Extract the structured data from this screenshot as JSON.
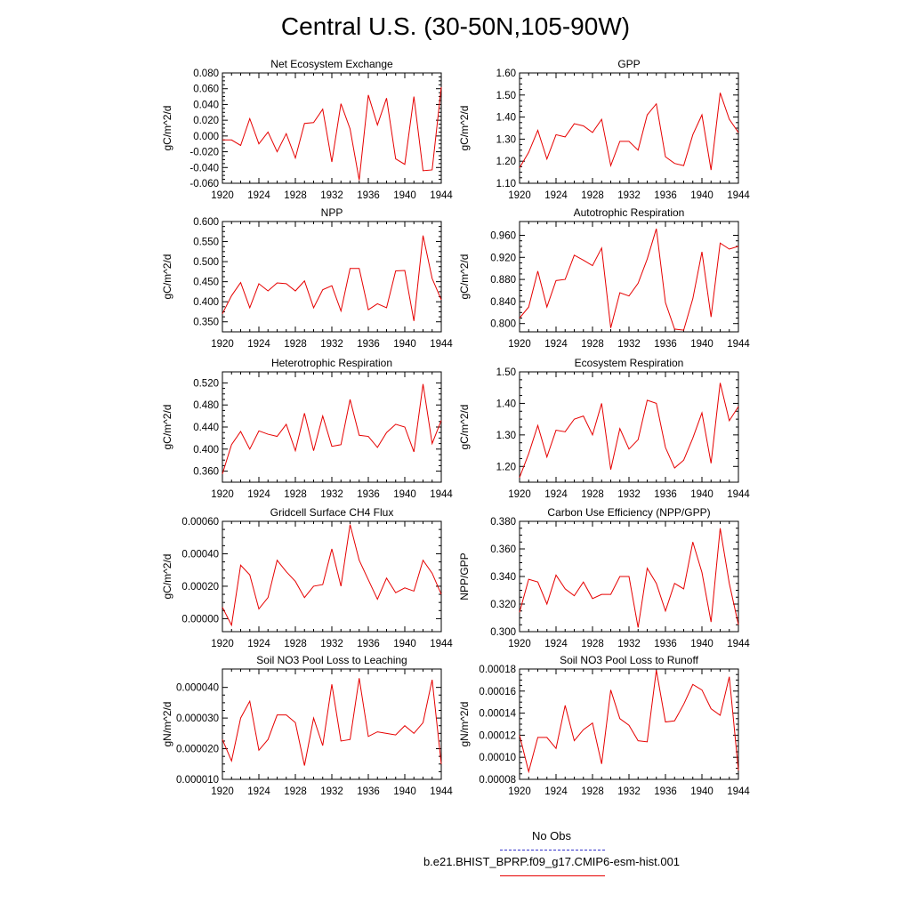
{
  "title": "Central U.S. (30-50N,105-90W)",
  "legend": {
    "obs_label": "No Obs",
    "obs_color": "#3333cc",
    "model_label": "b.e21.BHIST_BPRP.f09_g17.CMIP6-esm-hist.001",
    "model_color": "#e60000"
  },
  "chart_data": [
    {
      "type": "line",
      "title": "Net Ecosystem Exchange",
      "ylabel": "gC/m^2/d",
      "xlim": [
        1920,
        1944
      ],
      "ylim": [
        -0.06,
        0.08
      ],
      "yticks": [
        "-0.060",
        "-0.040",
        "-0.020",
        "0.000",
        "0.020",
        "0.040",
        "0.060",
        "0.080"
      ],
      "ytick_values": [
        -0.06,
        -0.04,
        -0.02,
        0.0,
        0.02,
        0.04,
        0.06,
        0.08
      ],
      "xticks": [
        1920,
        1924,
        1928,
        1932,
        1936,
        1940,
        1944
      ],
      "x": [
        1920,
        1921,
        1922,
        1923,
        1924,
        1925,
        1926,
        1927,
        1928,
        1929,
        1930,
        1931,
        1932,
        1933,
        1934,
        1935,
        1936,
        1937,
        1938,
        1939,
        1940,
        1941,
        1942,
        1943,
        1944
      ],
      "values": [
        -0.005,
        -0.005,
        -0.012,
        0.022,
        -0.01,
        0.005,
        -0.02,
        0.003,
        -0.028,
        0.016,
        0.017,
        0.034,
        -0.033,
        0.041,
        0.009,
        -0.056,
        0.052,
        0.014,
        0.048,
        -0.029,
        -0.036,
        0.05,
        -0.044,
        -0.043,
        0.062
      ]
    },
    {
      "type": "line",
      "title": "GPP",
      "ylabel": "gC/m^2/d",
      "xlim": [
        1920,
        1944
      ],
      "ylim": [
        1.1,
        1.6
      ],
      "yticks": [
        "1.10",
        "1.20",
        "1.30",
        "1.40",
        "1.50",
        "1.60"
      ],
      "ytick_values": [
        1.1,
        1.2,
        1.3,
        1.4,
        1.5,
        1.6
      ],
      "xticks": [
        1920,
        1924,
        1928,
        1932,
        1936,
        1940,
        1944
      ],
      "x": [
        1920,
        1921,
        1922,
        1923,
        1924,
        1925,
        1926,
        1927,
        1928,
        1929,
        1930,
        1931,
        1932,
        1933,
        1934,
        1935,
        1936,
        1937,
        1938,
        1939,
        1940,
        1941,
        1942,
        1943,
        1944
      ],
      "values": [
        1.17,
        1.24,
        1.34,
        1.21,
        1.32,
        1.31,
        1.37,
        1.36,
        1.33,
        1.39,
        1.18,
        1.29,
        1.29,
        1.25,
        1.41,
        1.46,
        1.22,
        1.19,
        1.18,
        1.32,
        1.41,
        1.16,
        1.51,
        1.39,
        1.33
      ]
    },
    {
      "type": "line",
      "title": "NPP",
      "ylabel": "gC/m^2/d",
      "xlim": [
        1920,
        1944
      ],
      "ylim": [
        0.325,
        0.6
      ],
      "yticks": [
        "0.350",
        "0.400",
        "0.450",
        "0.500",
        "0.550",
        "0.600"
      ],
      "ytick_values": [
        0.35,
        0.4,
        0.45,
        0.5,
        0.55,
        0.6
      ],
      "xticks": [
        1920,
        1924,
        1928,
        1932,
        1936,
        1940,
        1944
      ],
      "x": [
        1920,
        1921,
        1922,
        1923,
        1924,
        1925,
        1926,
        1927,
        1928,
        1929,
        1930,
        1931,
        1932,
        1933,
        1934,
        1935,
        1936,
        1937,
        1938,
        1939,
        1940,
        1941,
        1942,
        1943,
        1944
      ],
      "values": [
        0.37,
        0.415,
        0.448,
        0.385,
        0.445,
        0.427,
        0.447,
        0.445,
        0.427,
        0.452,
        0.385,
        0.43,
        0.44,
        0.377,
        0.483,
        0.483,
        0.38,
        0.395,
        0.385,
        0.477,
        0.478,
        0.352,
        0.565,
        0.458,
        0.405
      ]
    },
    {
      "type": "line",
      "title": "Autotrophic Respiration",
      "ylabel": "gC/m^2/d",
      "xlim": [
        1920,
        1944
      ],
      "ylim": [
        0.785,
        0.985
      ],
      "yticks": [
        "0.800",
        "0.840",
        "0.880",
        "0.920",
        "0.960"
      ],
      "ytick_values": [
        0.8,
        0.84,
        0.88,
        0.92,
        0.96
      ],
      "xticks": [
        1920,
        1924,
        1928,
        1932,
        1936,
        1940,
        1944
      ],
      "x": [
        1920,
        1921,
        1922,
        1923,
        1924,
        1925,
        1926,
        1927,
        1928,
        1929,
        1930,
        1931,
        1932,
        1933,
        1934,
        1935,
        1936,
        1937,
        1938,
        1939,
        1940,
        1941,
        1942,
        1943,
        1944
      ],
      "values": [
        0.81,
        0.83,
        0.895,
        0.83,
        0.878,
        0.88,
        0.924,
        0.915,
        0.905,
        0.937,
        0.792,
        0.856,
        0.85,
        0.873,
        0.917,
        0.972,
        0.838,
        0.79,
        0.788,
        0.845,
        0.93,
        0.812,
        0.946,
        0.935,
        0.94
      ]
    },
    {
      "type": "line",
      "title": "Heterotrophic Respiration",
      "ylabel": "gC/m^2/d",
      "xlim": [
        1920,
        1944
      ],
      "ylim": [
        0.34,
        0.54
      ],
      "yticks": [
        "0.360",
        "0.400",
        "0.440",
        "0.480",
        "0.520"
      ],
      "ytick_values": [
        0.36,
        0.4,
        0.44,
        0.48,
        0.52
      ],
      "xticks": [
        1920,
        1924,
        1928,
        1932,
        1936,
        1940,
        1944
      ],
      "x": [
        1920,
        1921,
        1922,
        1923,
        1924,
        1925,
        1926,
        1927,
        1928,
        1929,
        1930,
        1931,
        1932,
        1933,
        1934,
        1935,
        1936,
        1937,
        1938,
        1939,
        1940,
        1941,
        1942,
        1943,
        1944
      ],
      "values": [
        0.355,
        0.408,
        0.432,
        0.4,
        0.433,
        0.427,
        0.423,
        0.445,
        0.397,
        0.465,
        0.397,
        0.46,
        0.405,
        0.408,
        0.49,
        0.425,
        0.423,
        0.403,
        0.43,
        0.445,
        0.44,
        0.395,
        0.518,
        0.41,
        0.452
      ]
    },
    {
      "type": "line",
      "title": "Ecosystem Respiration",
      "ylabel": "gC/m^2/d",
      "xlim": [
        1920,
        1944
      ],
      "ylim": [
        1.15,
        1.5
      ],
      "yticks": [
        "1.20",
        "1.30",
        "1.40",
        "1.50"
      ],
      "ytick_values": [
        1.2,
        1.3,
        1.4,
        1.5
      ],
      "xticks": [
        1920,
        1924,
        1928,
        1932,
        1936,
        1940,
        1944
      ],
      "x": [
        1920,
        1921,
        1922,
        1923,
        1924,
        1925,
        1926,
        1927,
        1928,
        1929,
        1930,
        1931,
        1932,
        1933,
        1934,
        1935,
        1936,
        1937,
        1938,
        1939,
        1940,
        1941,
        1942,
        1943,
        1944
      ],
      "values": [
        1.165,
        1.24,
        1.33,
        1.23,
        1.315,
        1.31,
        1.35,
        1.36,
        1.3,
        1.4,
        1.19,
        1.32,
        1.255,
        1.285,
        1.41,
        1.4,
        1.26,
        1.195,
        1.22,
        1.29,
        1.37,
        1.21,
        1.465,
        1.345,
        1.39
      ]
    },
    {
      "type": "line",
      "title": "Gridcell Surface CH4 Flux",
      "ylabel": "gC/m^2/d",
      "xlim": [
        1920,
        1944
      ],
      "ylim": [
        -8e-05,
        0.0006
      ],
      "yticks": [
        "0.00000",
        "0.00020",
        "0.00040",
        "0.00060"
      ],
      "ytick_values": [
        0.0,
        0.0002,
        0.0004,
        0.0006
      ],
      "xticks": [
        1920,
        1924,
        1928,
        1932,
        1936,
        1940,
        1944
      ],
      "x": [
        1920,
        1921,
        1922,
        1923,
        1924,
        1925,
        1926,
        1927,
        1928,
        1929,
        1930,
        1931,
        1932,
        1933,
        1934,
        1935,
        1936,
        1937,
        1938,
        1939,
        1940,
        1941,
        1942,
        1943,
        1944
      ],
      "values": [
        7e-05,
        -4e-05,
        0.00033,
        0.00027,
        6e-05,
        0.00013,
        0.00036,
        0.00029,
        0.00023,
        0.00013,
        0.0002,
        0.00021,
        0.00043,
        0.0002,
        0.00058,
        0.00036,
        0.00024,
        0.00012,
        0.00025,
        0.00016,
        0.00019,
        0.00017,
        0.00036,
        0.00028,
        0.00015
      ]
    },
    {
      "type": "line",
      "title": "Carbon Use Efficiency (NPP/GPP)",
      "ylabel": "NPP/GPP",
      "xlim": [
        1920,
        1944
      ],
      "ylim": [
        0.3,
        0.38
      ],
      "yticks": [
        "0.300",
        "0.320",
        "0.340",
        "0.360",
        "0.380"
      ],
      "ytick_values": [
        0.3,
        0.32,
        0.34,
        0.36,
        0.38
      ],
      "xticks": [
        1920,
        1924,
        1928,
        1932,
        1936,
        1940,
        1944
      ],
      "x": [
        1920,
        1921,
        1922,
        1923,
        1924,
        1925,
        1926,
        1927,
        1928,
        1929,
        1930,
        1931,
        1932,
        1933,
        1934,
        1935,
        1936,
        1937,
        1938,
        1939,
        1940,
        1941,
        1942,
        1943,
        1944
      ],
      "values": [
        0.314,
        0.338,
        0.336,
        0.32,
        0.341,
        0.331,
        0.326,
        0.336,
        0.324,
        0.327,
        0.327,
        0.34,
        0.34,
        0.303,
        0.346,
        0.335,
        0.315,
        0.335,
        0.331,
        0.365,
        0.343,
        0.307,
        0.375,
        0.335,
        0.305
      ]
    },
    {
      "type": "line",
      "title": "Soil NO3 Pool Loss to Leaching",
      "ylabel": "gN/m^2/d",
      "xlim": [
        1920,
        1944
      ],
      "ylim": [
        1e-05,
        4.6e-05
      ],
      "yticks": [
        "0.000010",
        "0.000020",
        "0.000030",
        "0.000040"
      ],
      "ytick_values": [
        1e-05,
        2e-05,
        3e-05,
        4e-05
      ],
      "xticks": [
        1920,
        1924,
        1928,
        1932,
        1936,
        1940,
        1944
      ],
      "x": [
        1920,
        1921,
        1922,
        1923,
        1924,
        1925,
        1926,
        1927,
        1928,
        1929,
        1930,
        1931,
        1932,
        1933,
        1934,
        1935,
        1936,
        1937,
        1938,
        1939,
        1940,
        1941,
        1942,
        1943,
        1944
      ],
      "values": [
        2.3e-05,
        1.6e-05,
        3e-05,
        3.55e-05,
        1.95e-05,
        2.3e-05,
        3.1e-05,
        3.1e-05,
        2.85e-05,
        1.45e-05,
        3e-05,
        2.1e-05,
        4.1e-05,
        2.25e-05,
        2.3e-05,
        4.3e-05,
        2.4e-05,
        2.55e-05,
        2.5e-05,
        2.45e-05,
        2.75e-05,
        2.5e-05,
        2.85e-05,
        4.25e-05,
        1.5e-05
      ]
    },
    {
      "type": "line",
      "title": "Soil NO3 Pool Loss to Runoff",
      "ylabel": "gN/m^2/d",
      "xlim": [
        1920,
        1944
      ],
      "ylim": [
        8e-05,
        0.00018
      ],
      "yticks": [
        "0.00008",
        "0.00010",
        "0.00012",
        "0.00014",
        "0.00016",
        "0.00018"
      ],
      "ytick_values": [
        8e-05,
        0.0001,
        0.00012,
        0.00014,
        0.00016,
        0.00018
      ],
      "xticks": [
        1920,
        1924,
        1928,
        1932,
        1936,
        1940,
        1944
      ],
      "x": [
        1920,
        1921,
        1922,
        1923,
        1924,
        1925,
        1926,
        1927,
        1928,
        1929,
        1930,
        1931,
        1932,
        1933,
        1934,
        1935,
        1936,
        1937,
        1938,
        1939,
        1940,
        1941,
        1942,
        1943,
        1944
      ],
      "values": [
        0.00012,
        8.7e-05,
        0.000118,
        0.000118,
        0.000108,
        0.000147,
        0.000115,
        0.000125,
        0.000131,
        9.4e-05,
        0.000161,
        0.000135,
        0.000129,
        0.000115,
        0.000114,
        0.000179,
        0.000132,
        0.000133,
        0.000148,
        0.000166,
        0.000161,
        0.000144,
        0.000138,
        0.000173,
        8.8e-05
      ]
    }
  ]
}
